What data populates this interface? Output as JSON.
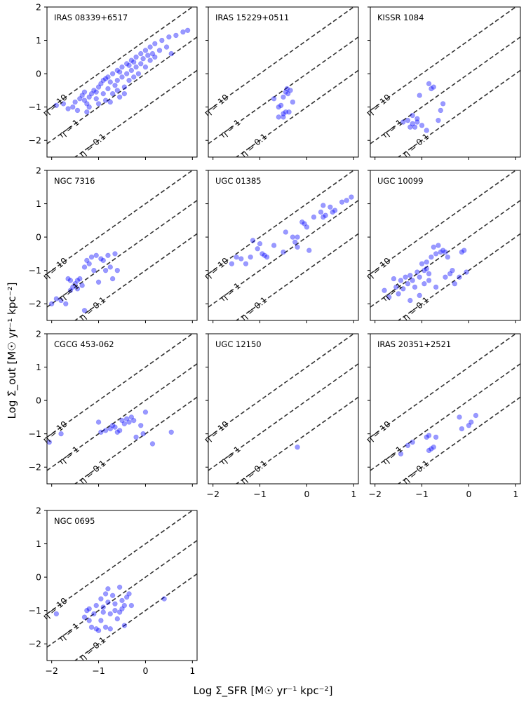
{
  "figure": {
    "xlabel": "Log Σ_SFR [M☉ yr⁻¹ kpc⁻²]",
    "ylabel": "Log Σ̇_out [M☉ yr⁻¹ kpc⁻²]"
  },
  "chart_data": {
    "type": "scatter",
    "xlim": [
      -2.1,
      1.1
    ],
    "ylim": [
      -2.5,
      2.0
    ],
    "xticks": [
      -2,
      -1,
      0,
      1
    ],
    "yticks": [
      -2,
      -1,
      0,
      1,
      2
    ],
    "xtick_labels": [
      "−2",
      "−1",
      "0",
      "1"
    ],
    "ytick_labels": [
      "−2",
      "−1",
      "0",
      "1",
      "2"
    ],
    "point_color": "#0000ff",
    "line_color": "#333333",
    "eta_lines": [
      {
        "eta": 10,
        "label": "η = 10"
      },
      {
        "eta": 1,
        "label": "η = 1"
      },
      {
        "eta": 0.1,
        "label": "η = 0.1"
      }
    ],
    "panels": [
      {
        "name": "IRAS 08339+6517",
        "points": [
          [
            -1.9,
            -0.95
          ],
          [
            -1.75,
            -0.9
          ],
          [
            -1.65,
            -1.05
          ],
          [
            -1.55,
            -1.0
          ],
          [
            -1.5,
            -0.85
          ],
          [
            -1.45,
            -1.1
          ],
          [
            -1.4,
            -0.75
          ],
          [
            -1.35,
            -0.65
          ],
          [
            -1.3,
            -0.8
          ],
          [
            -1.3,
            -0.55
          ],
          [
            -1.25,
            -0.9
          ],
          [
            -1.2,
            -0.7
          ],
          [
            -1.2,
            -1.0
          ],
          [
            -1.15,
            -0.6
          ],
          [
            -1.1,
            -0.5
          ],
          [
            -1.05,
            -0.75
          ],
          [
            -1.0,
            -0.4
          ],
          [
            -1.0,
            -0.9
          ],
          [
            -0.95,
            -0.3
          ],
          [
            -0.9,
            -0.6
          ],
          [
            -0.9,
            -0.2
          ],
          [
            -0.85,
            -0.8
          ],
          [
            -0.8,
            -0.1
          ],
          [
            -0.8,
            -0.45
          ],
          [
            -0.75,
            -0.25
          ],
          [
            -0.7,
            0.0
          ],
          [
            -0.7,
            -0.6
          ],
          [
            -0.65,
            -0.35
          ],
          [
            -0.6,
            0.1
          ],
          [
            -0.6,
            -0.2
          ],
          [
            -0.55,
            -0.7
          ],
          [
            -0.5,
            0.2
          ],
          [
            -0.5,
            -0.1
          ],
          [
            -0.45,
            -0.4
          ],
          [
            -0.4,
            0.3
          ],
          [
            -0.4,
            0.0
          ],
          [
            -0.35,
            -0.2
          ],
          [
            -0.3,
            0.4
          ],
          [
            -0.3,
            0.1
          ],
          [
            -0.25,
            -0.1
          ],
          [
            -0.2,
            0.5
          ],
          [
            -0.2,
            0.2
          ],
          [
            -0.15,
            0.0
          ],
          [
            -0.1,
            0.6
          ],
          [
            -0.1,
            0.3
          ],
          [
            -0.05,
            0.45
          ],
          [
            0.0,
            0.7
          ],
          [
            0.0,
            0.2
          ],
          [
            0.05,
            0.55
          ],
          [
            0.1,
            0.8
          ],
          [
            0.1,
            0.4
          ],
          [
            0.15,
            0.6
          ],
          [
            0.2,
            0.9
          ],
          [
            0.2,
            0.5
          ],
          [
            0.3,
            0.7
          ],
          [
            0.35,
            1.0
          ],
          [
            0.45,
            0.8
          ],
          [
            0.5,
            1.1
          ],
          [
            0.55,
            0.6
          ],
          [
            0.65,
            1.15
          ],
          [
            0.8,
            1.25
          ],
          [
            0.9,
            1.3
          ],
          [
            -1.25,
            -1.15
          ],
          [
            -1.05,
            -0.55
          ],
          [
            -0.75,
            -0.85
          ],
          [
            -0.55,
            0.05
          ],
          [
            -0.35,
            0.25
          ],
          [
            -0.6,
            -0.5
          ],
          [
            -0.85,
            -0.15
          ],
          [
            -0.45,
            -0.6
          ],
          [
            -0.25,
            0.35
          ]
        ]
      },
      {
        "name": "IRAS 15229+0511",
        "points": [
          [
            -0.7,
            -0.75
          ],
          [
            -0.6,
            -1.0
          ],
          [
            -0.55,
            -0.95
          ],
          [
            -0.5,
            -0.7
          ],
          [
            -0.5,
            -1.2
          ],
          [
            -0.45,
            -0.55
          ],
          [
            -0.42,
            -0.45
          ],
          [
            -0.4,
            -0.6
          ],
          [
            -0.38,
            -1.15
          ],
          [
            -0.35,
            -0.5
          ],
          [
            -0.6,
            -1.3
          ],
          [
            -0.5,
            -1.3
          ],
          [
            -0.45,
            -1.15
          ],
          [
            -0.3,
            -0.85
          ]
        ]
      },
      {
        "name": "KISSR 1084",
        "points": [
          [
            -1.4,
            -1.45
          ],
          [
            -1.3,
            -1.4
          ],
          [
            -1.2,
            -1.25
          ],
          [
            -1.2,
            -1.5
          ],
          [
            -1.15,
            -1.6
          ],
          [
            -1.1,
            -1.45
          ],
          [
            -1.05,
            -0.65
          ],
          [
            -1.0,
            -1.55
          ],
          [
            -0.9,
            -1.7
          ],
          [
            -0.85,
            -0.3
          ],
          [
            -0.8,
            -0.45
          ],
          [
            -0.75,
            -0.4
          ],
          [
            -0.65,
            -1.4
          ],
          [
            -0.6,
            -1.1
          ],
          [
            -0.55,
            -0.9
          ],
          [
            -1.25,
            -1.6
          ],
          [
            -1.1,
            -1.35
          ]
        ]
      },
      {
        "name": "NGC 7316",
        "points": [
          [
            -2.0,
            -2.0
          ],
          [
            -1.9,
            -1.85
          ],
          [
            -1.8,
            -1.9
          ],
          [
            -1.7,
            -2.0
          ],
          [
            -1.65,
            -1.25
          ],
          [
            -1.6,
            -1.3
          ],
          [
            -1.55,
            -1.5
          ],
          [
            -1.5,
            -1.4
          ],
          [
            -1.45,
            -1.3
          ],
          [
            -1.4,
            -1.25
          ],
          [
            -1.35,
            -1.45
          ],
          [
            -1.3,
            -0.9
          ],
          [
            -1.25,
            -0.7
          ],
          [
            -1.2,
            -0.8
          ],
          [
            -1.15,
            -0.6
          ],
          [
            -1.1,
            -1.0
          ],
          [
            -1.05,
            -0.55
          ],
          [
            -1.0,
            -1.35
          ],
          [
            -0.95,
            -0.65
          ],
          [
            -0.9,
            -0.7
          ],
          [
            -0.85,
            -1.0
          ],
          [
            -0.8,
            -0.55
          ],
          [
            -0.75,
            -0.9
          ],
          [
            -0.7,
            -1.25
          ],
          [
            -0.65,
            -0.5
          ],
          [
            -0.6,
            -1.0
          ],
          [
            -1.3,
            -2.2
          ],
          [
            -1.6,
            -1.6
          ],
          [
            -1.45,
            -1.55
          ]
        ]
      },
      {
        "name": "UGC 01385",
        "points": [
          [
            -1.6,
            -0.8
          ],
          [
            -1.5,
            -0.6
          ],
          [
            -1.4,
            -0.65
          ],
          [
            -1.3,
            -0.8
          ],
          [
            -1.2,
            -0.6
          ],
          [
            -1.15,
            -0.1
          ],
          [
            -1.05,
            -0.35
          ],
          [
            -1.0,
            -0.2
          ],
          [
            -0.95,
            -0.5
          ],
          [
            -0.9,
            -0.55
          ],
          [
            -0.85,
            -0.6
          ],
          [
            -0.7,
            -0.25
          ],
          [
            -0.5,
            -0.45
          ],
          [
            -0.45,
            0.15
          ],
          [
            -0.3,
            0.0
          ],
          [
            -0.25,
            -0.15
          ],
          [
            -0.2,
            -0.3
          ],
          [
            -0.1,
            0.45
          ],
          [
            -0.05,
            0.4
          ],
          [
            0.0,
            0.3
          ],
          [
            0.05,
            -0.4
          ],
          [
            0.15,
            0.6
          ],
          [
            0.3,
            0.75
          ],
          [
            0.35,
            0.6
          ],
          [
            0.4,
            0.65
          ],
          [
            0.5,
            0.9
          ],
          [
            0.55,
            0.75
          ],
          [
            0.6,
            0.8
          ],
          [
            0.75,
            1.05
          ],
          [
            0.85,
            1.1
          ],
          [
            0.95,
            1.2
          ],
          [
            0.35,
            0.95
          ],
          [
            -0.2,
            0.0
          ]
        ]
      },
      {
        "name": "UGC 10099",
        "points": [
          [
            -1.8,
            -1.6
          ],
          [
            -1.7,
            -1.8
          ],
          [
            -1.6,
            -1.25
          ],
          [
            -1.55,
            -1.5
          ],
          [
            -1.5,
            -1.7
          ],
          [
            -1.45,
            -1.3
          ],
          [
            -1.4,
            -1.55
          ],
          [
            -1.35,
            -1.2
          ],
          [
            -1.3,
            -1.4
          ],
          [
            -1.25,
            -1.15
          ],
          [
            -1.2,
            -1.3
          ],
          [
            -1.15,
            -1.5
          ],
          [
            -1.1,
            -1.05
          ],
          [
            -1.05,
            -1.2
          ],
          [
            -1.0,
            -0.8
          ],
          [
            -0.95,
            -1.0
          ],
          [
            -0.9,
            -0.75
          ],
          [
            -0.85,
            -1.3
          ],
          [
            -0.8,
            -0.6
          ],
          [
            -0.75,
            -0.3
          ],
          [
            -0.7,
            -0.5
          ],
          [
            -0.65,
            -0.25
          ],
          [
            -0.6,
            -0.45
          ],
          [
            -0.55,
            -0.4
          ],
          [
            -0.5,
            -0.45
          ],
          [
            -0.45,
            -0.6
          ],
          [
            -0.4,
            -1.1
          ],
          [
            -0.35,
            -1.0
          ],
          [
            -0.3,
            -1.4
          ],
          [
            -0.2,
            -1.2
          ],
          [
            -0.15,
            -0.45
          ],
          [
            -0.1,
            -0.4
          ],
          [
            -0.05,
            -1.05
          ],
          [
            -0.7,
            -1.5
          ],
          [
            -1.05,
            -1.75
          ],
          [
            -0.95,
            -1.4
          ],
          [
            -0.85,
            -1.1
          ],
          [
            -1.25,
            -1.9
          ],
          [
            -0.5,
            -1.2
          ],
          [
            -0.9,
            -0.95
          ]
        ]
      },
      {
        "name": "CGCG 453-062",
        "points": [
          [
            -2.05,
            -1.25
          ],
          [
            -1.8,
            -1.0
          ],
          [
            -1.0,
            -0.65
          ],
          [
            -0.95,
            -0.95
          ],
          [
            -0.85,
            -0.9
          ],
          [
            -0.75,
            -0.85
          ],
          [
            -0.7,
            -0.75
          ],
          [
            -0.6,
            -0.95
          ],
          [
            -0.55,
            -0.9
          ],
          [
            -0.5,
            -0.6
          ],
          [
            -0.45,
            -0.7
          ],
          [
            -0.4,
            -0.55
          ],
          [
            -0.35,
            -0.65
          ],
          [
            -0.3,
            -0.5
          ],
          [
            -0.25,
            -0.6
          ],
          [
            -0.2,
            -1.1
          ],
          [
            -0.1,
            -0.75
          ],
          [
            -0.05,
            -1.0
          ],
          [
            0.0,
            -0.35
          ],
          [
            0.15,
            -1.3
          ],
          [
            0.55,
            -0.95
          ],
          [
            -0.65,
            -0.8
          ]
        ]
      },
      {
        "name": "UGC 12150",
        "points": [
          [
            -0.2,
            -1.4
          ]
        ]
      },
      {
        "name": "IRAS 20351+2521",
        "points": [
          [
            -1.45,
            -1.6
          ],
          [
            -1.3,
            -1.35
          ],
          [
            -1.2,
            -1.25
          ],
          [
            -0.9,
            -1.1
          ],
          [
            -0.85,
            -1.05
          ],
          [
            -0.8,
            -1.45
          ],
          [
            -0.75,
            -1.4
          ],
          [
            -0.7,
            -1.1
          ],
          [
            -0.2,
            -0.5
          ],
          [
            -0.15,
            -0.85
          ],
          [
            0.0,
            -0.75
          ],
          [
            0.05,
            -0.65
          ],
          [
            0.15,
            -0.45
          ],
          [
            -0.85,
            -1.5
          ]
        ]
      },
      {
        "name": "NGC 0695",
        "points": [
          [
            -1.9,
            -1.1
          ],
          [
            -1.3,
            -1.2
          ],
          [
            -1.25,
            -1.0
          ],
          [
            -1.2,
            -1.3
          ],
          [
            -1.15,
            -1.5
          ],
          [
            -1.1,
            -1.1
          ],
          [
            -1.05,
            -0.85
          ],
          [
            -1.0,
            -1.6
          ],
          [
            -0.95,
            -0.65
          ],
          [
            -0.95,
            -1.3
          ],
          [
            -0.9,
            -0.9
          ],
          [
            -0.85,
            -0.5
          ],
          [
            -0.85,
            -1.5
          ],
          [
            -0.8,
            -0.35
          ],
          [
            -0.8,
            -0.75
          ],
          [
            -0.75,
            -1.1
          ],
          [
            -0.75,
            -1.55
          ],
          [
            -0.7,
            -0.55
          ],
          [
            -0.65,
            -0.8
          ],
          [
            -0.6,
            -1.25
          ],
          [
            -0.55,
            -0.3
          ],
          [
            -0.55,
            -1.05
          ],
          [
            -0.5,
            -0.7
          ],
          [
            -0.5,
            -0.95
          ],
          [
            -0.45,
            -1.45
          ],
          [
            -0.4,
            -0.6
          ],
          [
            -0.35,
            -0.5
          ],
          [
            -0.3,
            -0.85
          ],
          [
            0.4,
            -0.65
          ],
          [
            -1.05,
            -1.55
          ],
          [
            -0.65,
            -1.0
          ],
          [
            -0.9,
            -1.05
          ],
          [
            -0.45,
            -0.85
          ],
          [
            -1.2,
            -0.95
          ]
        ]
      }
    ]
  }
}
